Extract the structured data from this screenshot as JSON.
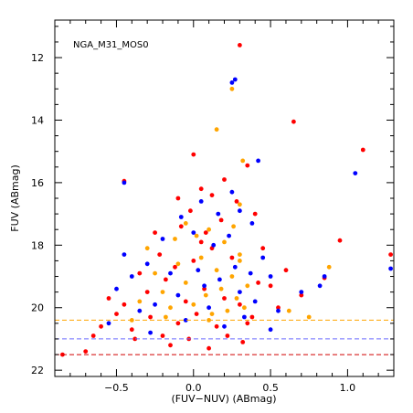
{
  "chart_data": {
    "type": "scatter",
    "annotation": "NGA_M31_MOS0",
    "xlabel": "(FUV−NUV) (ABmag)",
    "ylabel": "FUV (ABmag)",
    "xlim": [
      -0.9,
      1.3
    ],
    "ylim": [
      22.2,
      10.8
    ],
    "y_inverted": true,
    "x_ticks": [
      -0.5,
      0.0,
      0.5,
      1.0
    ],
    "x_tick_labels": [
      "−0.5",
      "0.0",
      "0.5",
      "1.0"
    ],
    "y_ticks": [
      12,
      14,
      16,
      18,
      20,
      22
    ],
    "y_tick_labels": [
      "12",
      "14",
      "16",
      "18",
      "20",
      "22"
    ],
    "grid": false,
    "limit_lines": [
      {
        "color": "#ffa500",
        "value": 20.4
      },
      {
        "color": "#6b6bff",
        "value": 21.0
      },
      {
        "color": "#d00000",
        "value": 21.5
      }
    ],
    "series": [
      {
        "color": "#ff0000",
        "points": [
          [
            0.3,
            11.6
          ],
          [
            0.65,
            14.05
          ],
          [
            1.1,
            14.95
          ],
          [
            0.35,
            15.45
          ],
          [
            0.0,
            15.1
          ],
          [
            0.05,
            16.2
          ],
          [
            -0.1,
            16.5
          ],
          [
            0.95,
            17.85
          ],
          [
            1.28,
            18.3
          ],
          [
            0.85,
            19.05
          ],
          [
            0.7,
            19.6
          ],
          [
            0.6,
            18.8
          ],
          [
            0.45,
            18.1
          ],
          [
            0.5,
            19.3
          ],
          [
            0.55,
            20.0
          ],
          [
            0.35,
            20.5
          ],
          [
            -0.85,
            21.5
          ],
          [
            -0.7,
            21.4
          ],
          [
            -0.65,
            20.9
          ],
          [
            -0.6,
            20.6
          ],
          [
            -0.55,
            19.7
          ],
          [
            -0.5,
            20.2
          ],
          [
            -0.45,
            19.9
          ],
          [
            -0.4,
            20.7
          ],
          [
            -0.38,
            21.0
          ],
          [
            -0.35,
            18.9
          ],
          [
            -0.3,
            19.5
          ],
          [
            -0.28,
            20.3
          ],
          [
            -0.25,
            17.6
          ],
          [
            -0.22,
            18.3
          ],
          [
            -0.2,
            20.9
          ],
          [
            -0.18,
            19.1
          ],
          [
            -0.15,
            21.2
          ],
          [
            -0.12,
            18.7
          ],
          [
            -0.1,
            20.5
          ],
          [
            -0.08,
            17.4
          ],
          [
            -0.05,
            19.8
          ],
          [
            -0.03,
            21.0
          ],
          [
            0.0,
            18.5
          ],
          [
            0.02,
            20.2
          ],
          [
            0.05,
            17.9
          ],
          [
            0.07,
            19.4
          ],
          [
            0.1,
            21.3
          ],
          [
            0.12,
            18.1
          ],
          [
            0.15,
            20.6
          ],
          [
            0.18,
            17.2
          ],
          [
            0.2,
            19.7
          ],
          [
            0.22,
            20.9
          ],
          [
            0.25,
            18.4
          ],
          [
            0.28,
            16.6
          ],
          [
            0.3,
            19.9
          ],
          [
            0.32,
            21.1
          ],
          [
            0.38,
            20.3
          ],
          [
            0.4,
            17.0
          ],
          [
            0.42,
            19.2
          ],
          [
            -0.45,
            15.95
          ],
          [
            0.2,
            15.9
          ],
          [
            0.12,
            16.4
          ],
          [
            -0.02,
            16.9
          ],
          [
            0.08,
            17.6
          ]
        ]
      },
      {
        "color": "#ffa500",
        "points": [
          [
            0.25,
            13.0
          ],
          [
            0.15,
            14.3
          ],
          [
            0.32,
            15.3
          ],
          [
            0.3,
            16.7
          ],
          [
            -0.05,
            17.3
          ],
          [
            0.1,
            17.5
          ],
          [
            0.2,
            17.9
          ],
          [
            0.3,
            18.3
          ],
          [
            0.88,
            18.7
          ],
          [
            0.75,
            20.3
          ],
          [
            0.62,
            20.1
          ],
          [
            -0.3,
            18.1
          ],
          [
            -0.25,
            18.9
          ],
          [
            -0.2,
            19.5
          ],
          [
            -0.15,
            20.0
          ],
          [
            -0.1,
            18.6
          ],
          [
            -0.05,
            19.2
          ],
          [
            0.0,
            19.9
          ],
          [
            0.05,
            18.4
          ],
          [
            0.08,
            19.6
          ],
          [
            0.12,
            20.2
          ],
          [
            0.15,
            18.8
          ],
          [
            0.18,
            19.4
          ],
          [
            0.22,
            20.1
          ],
          [
            0.25,
            19.0
          ],
          [
            0.28,
            19.7
          ],
          [
            0.3,
            18.5
          ],
          [
            0.35,
            19.3
          ],
          [
            -0.35,
            19.8
          ],
          [
            -0.4,
            20.4
          ],
          [
            -0.12,
            17.8
          ],
          [
            0.02,
            17.7
          ],
          [
            0.26,
            17.4
          ],
          [
            0.33,
            20.0
          ],
          [
            -0.18,
            20.3
          ],
          [
            0.1,
            20.4
          ]
        ]
      },
      {
        "color": "#0000ff",
        "points": [
          [
            0.27,
            12.7
          ],
          [
            0.25,
            12.8
          ],
          [
            1.05,
            15.7
          ],
          [
            0.38,
            17.3
          ],
          [
            0.3,
            16.9
          ],
          [
            0.85,
            19.0
          ],
          [
            0.82,
            19.3
          ],
          [
            1.28,
            18.75
          ],
          [
            0.7,
            19.5
          ],
          [
            0.45,
            18.4
          ],
          [
            0.5,
            19.0
          ],
          [
            0.55,
            20.1
          ],
          [
            0.5,
            20.7
          ],
          [
            -0.45,
            18.3
          ],
          [
            -0.5,
            19.4
          ],
          [
            -0.55,
            20.5
          ],
          [
            -0.4,
            19.0
          ],
          [
            -0.35,
            20.1
          ],
          [
            -0.3,
            18.6
          ],
          [
            -0.25,
            19.9
          ],
          [
            -0.2,
            17.8
          ],
          [
            -0.15,
            18.9
          ],
          [
            -0.1,
            19.6
          ],
          [
            -0.05,
            20.4
          ],
          [
            0.0,
            17.6
          ],
          [
            0.03,
            18.8
          ],
          [
            0.07,
            19.3
          ],
          [
            0.1,
            20.0
          ],
          [
            0.13,
            18.0
          ],
          [
            0.17,
            19.1
          ],
          [
            0.2,
            20.6
          ],
          [
            0.23,
            17.7
          ],
          [
            0.27,
            18.7
          ],
          [
            0.3,
            19.5
          ],
          [
            0.33,
            20.3
          ],
          [
            0.37,
            18.9
          ],
          [
            0.4,
            19.8
          ],
          [
            -0.45,
            16.0
          ],
          [
            0.42,
            15.3
          ],
          [
            0.25,
            16.3
          ],
          [
            0.05,
            16.6
          ],
          [
            -0.08,
            17.1
          ],
          [
            0.16,
            17.0
          ],
          [
            -0.28,
            20.8
          ]
        ]
      }
    ]
  }
}
